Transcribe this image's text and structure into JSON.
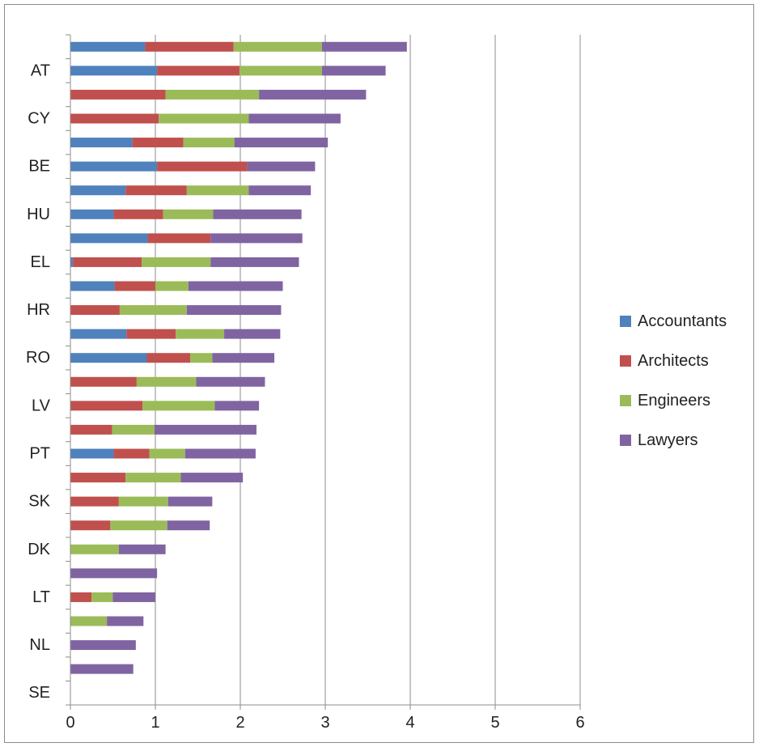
{
  "chart_data": {
    "type": "bar",
    "orientation": "horizontal",
    "stacked": true,
    "xlim": [
      0,
      6
    ],
    "x_ticks": [
      "0",
      "1",
      "2",
      "3",
      "4",
      "5",
      "6"
    ],
    "grid": "vertical",
    "legend_position": "right",
    "categories": [
      "",
      "AT",
      "",
      "CY",
      "",
      "BE",
      "",
      "HU",
      "",
      "EL",
      "",
      "HR",
      "",
      "RO",
      "",
      "LV",
      "",
      "PT",
      "",
      "SK",
      "",
      "DK",
      "",
      "LT",
      "",
      "NL",
      "",
      "SE"
    ],
    "series": [
      {
        "name": "Accountants",
        "color": "#4f81bd",
        "values": [
          0.88,
          1.02,
          0,
          0,
          0.73,
          1.02,
          0.65,
          0.51,
          0.91,
          0.03,
          0.52,
          0,
          0.66,
          0.9,
          0,
          0,
          0,
          0.51,
          0,
          0,
          0,
          0,
          0,
          0,
          0,
          0,
          0,
          0
        ]
      },
      {
        "name": "Architects",
        "color": "#c0504d",
        "values": [
          1.04,
          0.97,
          1.12,
          1.04,
          0.6,
          1.06,
          0.72,
          0.58,
          0.74,
          0.81,
          0.48,
          0.58,
          0.58,
          0.51,
          0.78,
          0.85,
          0.49,
          0.42,
          0.65,
          0.57,
          0.47,
          0,
          0,
          0.25,
          0,
          0,
          0,
          0
        ]
      },
      {
        "name": "Engineers",
        "color": "#9bbb59",
        "values": [
          1.04,
          0.97,
          1.1,
          1.06,
          0.6,
          0,
          0.73,
          0.59,
          0,
          0.81,
          0.39,
          0.79,
          0.57,
          0.26,
          0.7,
          0.85,
          0.5,
          0.42,
          0.65,
          0.58,
          0.67,
          0.57,
          0,
          0.25,
          0.43,
          0,
          0,
          0
        ]
      },
      {
        "name": "Lawyers",
        "color": "#8064a2",
        "values": [
          1.0,
          0.75,
          1.26,
          1.08,
          1.1,
          0.8,
          0.73,
          1.04,
          1.08,
          1.04,
          1.11,
          1.11,
          0.66,
          0.73,
          0.81,
          0.52,
          1.2,
          0.83,
          0.73,
          0.52,
          0.5,
          0.55,
          1.02,
          0.5,
          0.43,
          0.77,
          0.74,
          0
        ]
      }
    ]
  }
}
